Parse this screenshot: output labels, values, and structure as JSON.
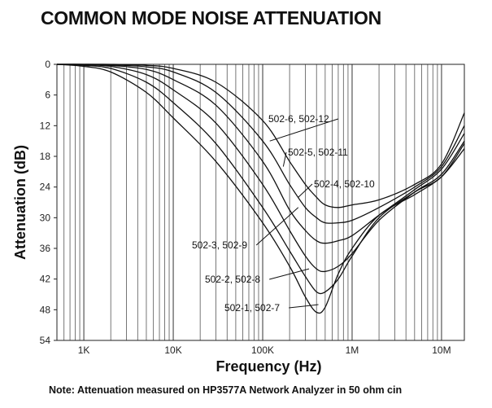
{
  "chart_data": {
    "type": "line",
    "title": "COMMON MODE NOISE ATTENUATION",
    "xlabel": "Frequency (Hz)",
    "ylabel": "Attenuation (dB)",
    "note": "Note: Attenuation measured on HP3577A Network Analyzer in 50 ohm cin",
    "x_scale": "log",
    "xlim": [
      500,
      18000000
    ],
    "ylim": [
      54,
      0
    ],
    "x_ticks": [
      {
        "value": 1000,
        "label": "1K"
      },
      {
        "value": 10000,
        "label": "10K"
      },
      {
        "value": 100000,
        "label": "100K"
      },
      {
        "value": 1000000,
        "label": "1M"
      },
      {
        "value": 10000000,
        "label": "10M"
      }
    ],
    "y_ticks": [
      0,
      6,
      12,
      18,
      24,
      30,
      36,
      42,
      48,
      54
    ],
    "grid": "vertical log grid; dashed reference line at 0 dB",
    "series": [
      {
        "name": "502-1, 502-7",
        "x": [
          500,
          1000,
          2000,
          5000,
          10000,
          30000,
          100000,
          200000,
          300000,
          400000,
          500000,
          700000,
          1000000,
          2000000,
          5000000,
          10000000,
          18000000
        ],
        "y": [
          0,
          0.4,
          1.5,
          5.5,
          10.5,
          19,
          31,
          39.5,
          45.5,
          48.5,
          47.5,
          41,
          36,
          29.5,
          25.5,
          22,
          16.5
        ]
      },
      {
        "name": "502-2, 502-8",
        "x": [
          500,
          1000,
          2000,
          5000,
          10000,
          30000,
          100000,
          200000,
          300000,
          400000,
          500000,
          700000,
          1000000,
          2000000,
          5000000,
          10000000,
          18000000
        ],
        "y": [
          0,
          0.2,
          0.8,
          3.5,
          7.5,
          15.5,
          28,
          36.5,
          41.5,
          44.5,
          44.5,
          42,
          37.5,
          30,
          25,
          22,
          15.5
        ]
      },
      {
        "name": "502-3, 502-9",
        "x": [
          500,
          1000,
          2000,
          5000,
          10000,
          30000,
          100000,
          200000,
          300000,
          400000,
          500000,
          700000,
          1000000,
          2000000,
          5000000,
          10000000,
          18000000
        ],
        "y": [
          0,
          0.1,
          0.4,
          2,
          5,
          11.5,
          23.5,
          32.5,
          37.5,
          40,
          40.5,
          39.5,
          37,
          30.5,
          25,
          21.5,
          15
        ]
      },
      {
        "name": "502-4, 502-10",
        "x": [
          500,
          1000,
          2000,
          5000,
          10000,
          30000,
          100000,
          200000,
          300000,
          400000,
          500000,
          700000,
          1000000,
          2000000,
          5000000,
          10000000,
          18000000
        ],
        "y": [
          0,
          0,
          0.2,
          1,
          3,
          8,
          19,
          28.5,
          32.5,
          34.5,
          35,
          34.5,
          33.5,
          29.5,
          24.5,
          20.5,
          13.5
        ]
      },
      {
        "name": "502-5, 502-11",
        "x": [
          500,
          1000,
          2000,
          5000,
          10000,
          30000,
          100000,
          200000,
          300000,
          400000,
          500000,
          700000,
          1000000,
          2000000,
          5000000,
          10000000,
          18000000
        ],
        "y": [
          0,
          0,
          0.1,
          0.5,
          1.5,
          5.5,
          15,
          23.5,
          28,
          30,
          31,
          31,
          30.5,
          28,
          24,
          20,
          12
        ]
      },
      {
        "name": "502-6, 502-12",
        "x": [
          500,
          1000,
          2000,
          5000,
          10000,
          30000,
          100000,
          200000,
          300000,
          400000,
          500000,
          700000,
          1000000,
          2000000,
          5000000,
          10000000,
          18000000
        ],
        "y": [
          0,
          0,
          0,
          0.2,
          0.8,
          3.5,
          11,
          19,
          23.5,
          26,
          27.5,
          28,
          27.5,
          26.5,
          23.5,
          19.5,
          9.5
        ]
      }
    ],
    "curve_labels": [
      {
        "series": 5,
        "text": "502-6, 502-12",
        "anchor_x": 120000,
        "anchor_y": 15
      },
      {
        "series": 4,
        "text": "502-5, 502-11",
        "anchor_x": 170000,
        "anchor_y": 20
      },
      {
        "series": 3,
        "text": "502-4, 502-10",
        "anchor_x": 250000,
        "anchor_y": 26
      },
      {
        "series": 2,
        "text": "502-3, 502-9",
        "anchor_x": 250000,
        "anchor_y": 28
      },
      {
        "series": 1,
        "text": "502-2, 502-8",
        "anchor_x": 330000,
        "anchor_y": 40
      },
      {
        "series": 0,
        "text": "502-1, 502-7",
        "anchor_x": 420000,
        "anchor_y": 47
      }
    ]
  }
}
